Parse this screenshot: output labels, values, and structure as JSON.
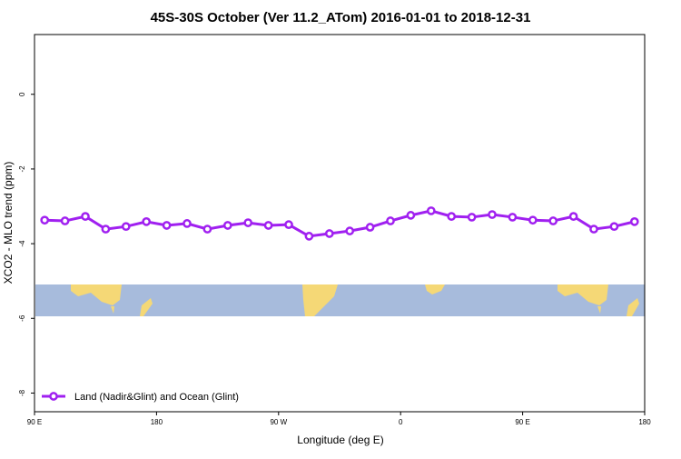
{
  "chart_data": {
    "type": "line",
    "title": "45S-30S October (Ver 11.2_ATom)   2016-01-01 to 2018-12-31",
    "x_label": "Longitude (deg E)",
    "y_label": "XCO2 - MLO trend (ppm)",
    "x": [
      97.5,
      112.5,
      127.5,
      142.5,
      157.5,
      172.5,
      187.5,
      202.5,
      217.5,
      232.5,
      247.5,
      262.5,
      277.5,
      292.5,
      307.5,
      322.5,
      337.5,
      352.5,
      367.5,
      382.5,
      397.5,
      412.5,
      427.5,
      442.5,
      457.5,
      472.5,
      487.5,
      502.5,
      517.5,
      532.5
    ],
    "series": [
      {
        "name": "Land (Nadir&Glint) and Ocean (Glint)",
        "color": "#a020f0",
        "values": [
          -3.37,
          -3.39,
          -3.27,
          -3.61,
          -3.54,
          -3.41,
          -3.51,
          -3.46,
          -3.61,
          -3.51,
          -3.44,
          -3.51,
          -3.49,
          -3.8,
          -3.73,
          -3.66,
          -3.56,
          -3.39,
          -3.24,
          -3.12,
          -3.27,
          -3.29,
          -3.22,
          -3.29,
          -3.37,
          -3.39,
          -3.27,
          -3.61,
          -3.54,
          -3.41
        ]
      }
    ],
    "xlim": [
      90,
      540
    ],
    "xticks": [
      {
        "value": 90,
        "label": "90 E"
      },
      {
        "value": 180,
        "label": "180"
      },
      {
        "value": 270,
        "label": "90 W"
      },
      {
        "value": 360,
        "label": "0"
      },
      {
        "value": 450,
        "label": "90 E"
      },
      {
        "value": 540,
        "label": "180"
      }
    ],
    "ylim": [
      -8.5,
      1.6
    ],
    "yticks": [
      0,
      -2,
      -4,
      -6,
      -8
    ],
    "legend": "bottom-left"
  }
}
